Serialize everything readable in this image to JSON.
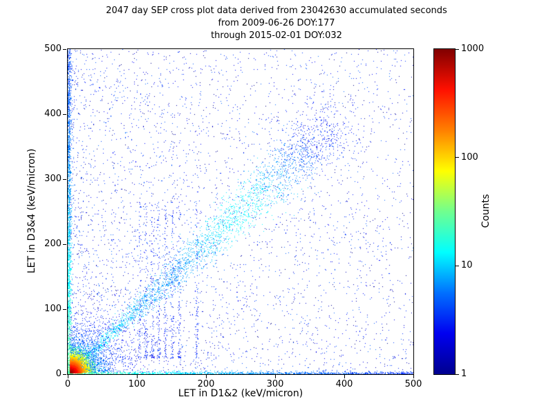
{
  "title": {
    "line1": "2047 day SEP cross plot data derived from 23042630 accumulated seconds",
    "line2": "from 2009-06-26 DOY:177",
    "line3": "through 2015-02-01 DOY:032"
  },
  "chart_data": {
    "type": "scatter",
    "title": "2047 day SEP cross plot data derived from 23042630 accumulated seconds",
    "subtitle": [
      "from 2009-06-26 DOY:177",
      "through 2015-02-01 DOY:032"
    ],
    "xlabel": "LET in D1&2 (keV/micron)",
    "ylabel": "LET in D3&4 (keV/micron)",
    "xlim": [
      0,
      500
    ],
    "ylim": [
      0,
      500
    ],
    "x_ticks": [
      0,
      100,
      200,
      300,
      400,
      500
    ],
    "y_ticks": [
      0,
      100,
      200,
      300,
      400,
      500
    ],
    "grid": false,
    "legend": "none",
    "colorbar": {
      "label": "Counts",
      "scale": "log",
      "min": 1,
      "max": 1000,
      "ticks": [
        1,
        10,
        100,
        1000
      ],
      "colormap": "jet",
      "colormap_stops": [
        "#00008f",
        "#0000f0",
        "#0070ff",
        "#00ffff",
        "#70ff8f",
        "#ffff00",
        "#ff8000",
        "#ff1000",
        "#800000"
      ]
    },
    "density_model": {
      "comment": "2D density scatter: hot (red/yellow ~1000 counts) core at origin, cyan fan to ~60 keV/micron, blue diagonal coincidence band y=x to ~380 with denser blob near 250, dense columns along both axes, faint vertical streaks near x=100-190, sparse blue background over full 0-500 range",
      "seed": 20470,
      "features": [
        {
          "kind": "uniform",
          "count": 1400,
          "x_bias": 1.0,
          "y_bias": 1.0,
          "count_level": 1.5
        },
        {
          "kind": "uniform",
          "count": 2600,
          "x_bias": 1.7,
          "y_bias": 1.25,
          "count_level": 2
        },
        {
          "kind": "edge_left",
          "count": 1700,
          "sigma": 2.2
        },
        {
          "kind": "edge_bottom",
          "count": 1500,
          "sigma": 2.2
        },
        {
          "kind": "streaks",
          "x_positions": [
            104,
            113,
            122,
            131,
            141,
            151,
            161,
            186
          ],
          "count_each": 95,
          "y_min": 25,
          "y_max": 265
        },
        {
          "kind": "diagonal",
          "count": 2800,
          "t_max": 385,
          "spread_base": 1.5,
          "spread_growth": 0.055
        },
        {
          "kind": "radial_fan",
          "count": 3600,
          "center": [
            3,
            3
          ],
          "scale": 30,
          "peak": 9,
          "color_scale": 45
        },
        {
          "kind": "hotspot",
          "count": 8000,
          "center": [
            3,
            3
          ],
          "scale": 9,
          "peak": 1000,
          "color_scale": 10
        }
      ]
    }
  }
}
